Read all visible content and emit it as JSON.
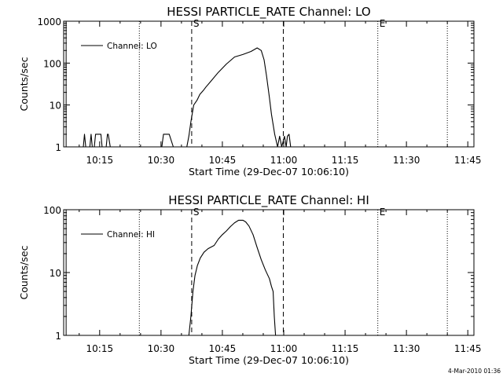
{
  "footer_timestamp": "4-Mar-2010 01:36",
  "chart_data": [
    {
      "type": "line",
      "title": "HESSI PARTICLE_RATE Channel: LO",
      "xlabel": "Start Time (29-Dec-07 10:06:10)",
      "ylabel": "Counts/sec",
      "y_scale": "log",
      "ylim": [
        1,
        1000
      ],
      "x_unit": "minutes after 10:00",
      "xlim": [
        6.2,
        106.5
      ],
      "x_ticks": [
        15,
        30,
        45,
        60,
        75,
        90,
        105
      ],
      "x_tick_labels": [
        "10:15",
        "10:30",
        "10:45",
        "11:00",
        "11:15",
        "11:30",
        "11:45"
      ],
      "y_ticks": [
        1,
        10,
        100,
        1000
      ],
      "y_tick_labels": [
        "1",
        "10",
        "100",
        "1000"
      ],
      "legend": {
        "position": "top-left",
        "entries": [
          "Channel: LO"
        ]
      },
      "markers": [
        {
          "label": "",
          "x": 24.7,
          "style": "dotted"
        },
        {
          "label": "S",
          "x": 37.5,
          "style": "dashed"
        },
        {
          "label": "",
          "x": 59.9,
          "style": "dashed"
        },
        {
          "label": "E",
          "x": 83.0,
          "style": "dotted"
        },
        {
          "label": "",
          "x": 100.0,
          "style": "dotted"
        },
        {
          "label": "",
          "x": 6.8,
          "style": "solid"
        }
      ],
      "series": [
        {
          "name": "Channel: LO",
          "x": [
            11.0,
            11.3,
            11.6,
            12.6,
            12.9,
            13.2,
            13.7,
            14.0,
            15.0,
            15.3,
            15.6,
            16.6,
            16.9,
            17.1,
            17.6,
            30.2,
            30.6,
            31.0,
            31.5,
            32.0,
            33.0,
            36.3,
            36.8,
            37.3,
            38.0,
            38.8,
            39.5,
            40.3,
            41.0,
            42.0,
            44.0,
            46.0,
            48.0,
            50.0,
            52.0,
            53.5,
            54.5,
            55.2,
            55.8,
            56.5,
            57.0,
            57.8,
            58.5,
            59.0,
            59.5,
            60.2,
            60.6,
            60.9,
            61.3,
            61.7
          ],
          "y": [
            1,
            2,
            1,
            1,
            2,
            1,
            1,
            2,
            2,
            2,
            1,
            1,
            2,
            2,
            1,
            1,
            2,
            2,
            2,
            2,
            1,
            1,
            1.8,
            4,
            10,
            13,
            18,
            22,
            27,
            35,
            60,
            95,
            140,
            160,
            190,
            230,
            200,
            120,
            50,
            15,
            6,
            2,
            1,
            1.8,
            1,
            1.8,
            1,
            1.8,
            2,
            1
          ]
        }
      ]
    },
    {
      "type": "line",
      "title": "HESSI PARTICLE_RATE Channel: HI",
      "xlabel": "Start Time (29-Dec-07 10:06:10)",
      "ylabel": "Counts/sec",
      "y_scale": "log",
      "ylim": [
        1,
        100
      ],
      "x_unit": "minutes after 10:00",
      "xlim": [
        6.2,
        106.5
      ],
      "x_ticks": [
        15,
        30,
        45,
        60,
        75,
        90,
        105
      ],
      "x_tick_labels": [
        "10:15",
        "10:30",
        "10:45",
        "11:00",
        "11:15",
        "11:30",
        "11:45"
      ],
      "y_ticks": [
        1,
        10,
        100
      ],
      "y_tick_labels": [
        "1",
        "10",
        "100"
      ],
      "legend": {
        "position": "top-left",
        "entries": [
          "Channel: HI"
        ]
      },
      "markers": [
        {
          "label": "",
          "x": 24.7,
          "style": "dotted"
        },
        {
          "label": "S",
          "x": 37.5,
          "style": "dashed"
        },
        {
          "label": "",
          "x": 59.9,
          "style": "dashed"
        },
        {
          "label": "E",
          "x": 83.0,
          "style": "dotted"
        },
        {
          "label": "",
          "x": 100.0,
          "style": "dotted"
        },
        {
          "label": "",
          "x": 6.8,
          "style": "solid"
        }
      ],
      "series": [
        {
          "name": "Channel: HI",
          "x": [
            36.8,
            37.3,
            37.8,
            38.3,
            38.9,
            39.6,
            40.5,
            41.5,
            43.0,
            44.0,
            45.0,
            46.0,
            47.0,
            48.0,
            49.0,
            50.0,
            50.7,
            51.5,
            52.5,
            53.5,
            54.5,
            55.5,
            56.5,
            57.0,
            57.4,
            57.7,
            58.0
          ],
          "y": [
            1,
            2,
            5,
            9,
            13,
            17,
            21,
            24,
            27,
            34,
            40,
            46,
            54,
            62,
            68,
            68,
            64,
            55,
            40,
            25,
            16,
            11,
            8,
            6,
            5,
            2,
            1
          ]
        }
      ]
    }
  ]
}
